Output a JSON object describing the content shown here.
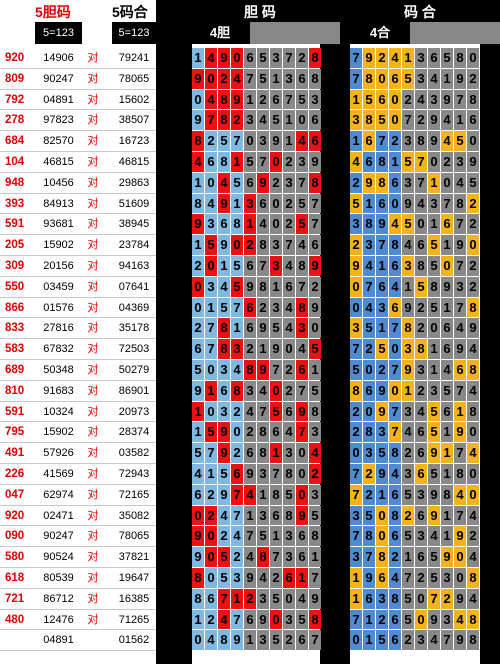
{
  "headers": {
    "col1_title": "5胆码",
    "col2_title": "5码合",
    "dan_title": "胆 码",
    "he_title": "码 合",
    "col1_sub": "5=123",
    "col2_sub": "5=123",
    "dan_sub": "4胆",
    "he_sub": "4合"
  },
  "colors": {
    "left_blue": "#7fb8e0",
    "red": "#ee1111",
    "gray": "#888888",
    "right_blue": "#4f8bd2",
    "yellow": "#f5b21a",
    "black": "#000000"
  },
  "rows": [
    {
      "label": "920",
      "a": "14906",
      "b": "对",
      "c": "79241",
      "d": "对",
      "dan": [
        "1",
        "4",
        "9",
        "0",
        "6",
        "5",
        "3",
        "7",
        "2",
        "8"
      ],
      "dan_red": [
        1,
        2,
        3,
        9
      ],
      "he": [
        "7",
        "9",
        "2",
        "4",
        "1",
        "3",
        "6",
        "5",
        "8",
        "0"
      ],
      "he_hl": [
        1,
        2,
        3,
        4
      ]
    },
    {
      "label": "809",
      "a": "90247",
      "b": "对",
      "c": "78065",
      "d": "对",
      "dan": [
        "9",
        "0",
        "2",
        "4",
        "7",
        "5",
        "1",
        "3",
        "6",
        "8"
      ],
      "dan_red": [
        0,
        1,
        2,
        3
      ],
      "he": [
        "7",
        "8",
        "0",
        "6",
        "5",
        "3",
        "4",
        "1",
        "9",
        "2"
      ],
      "he_hl": [
        1,
        2,
        3,
        4
      ]
    },
    {
      "label": "792",
      "a": "04891",
      "b": "对",
      "c": "15602",
      "d": "对",
      "dan": [
        "0",
        "4",
        "8",
        "9",
        "1",
        "2",
        "6",
        "7",
        "5",
        "3"
      ],
      "dan_red": [
        1,
        2,
        3
      ],
      "he": [
        "1",
        "5",
        "6",
        "0",
        "2",
        "4",
        "3",
        "9",
        "7",
        "8"
      ],
      "he_hl": [
        0,
        1,
        2,
        3
      ]
    },
    {
      "label": "278",
      "a": "97823",
      "b": "对",
      "c": "38507",
      "d": "对",
      "dan": [
        "9",
        "7",
        "8",
        "2",
        "3",
        "4",
        "5",
        "1",
        "0",
        "6"
      ],
      "dan_red": [
        1,
        2,
        3
      ],
      "he": [
        "3",
        "8",
        "5",
        "0",
        "7",
        "2",
        "9",
        "4",
        "1",
        "6"
      ],
      "he_hl": [
        0,
        1,
        2,
        3
      ]
    },
    {
      "label": "684",
      "a": "82570",
      "b": "对",
      "c": "16723",
      "d": "对",
      "dan": [
        "8",
        "2",
        "5",
        "7",
        "0",
        "3",
        "9",
        "1",
        "4",
        "6"
      ],
      "dan_red": [
        0,
        8,
        9
      ],
      "he": [
        "1",
        "6",
        "7",
        "2",
        "3",
        "8",
        "9",
        "4",
        "5",
        "0"
      ],
      "he_hl": [
        1,
        7,
        8
      ]
    },
    {
      "label": "104",
      "a": "46815",
      "b": "对",
      "c": "46815",
      "d": "对",
      "dan": [
        "4",
        "6",
        "8",
        "1",
        "5",
        "7",
        "0",
        "2",
        "3",
        "9"
      ],
      "dan_red": [
        0,
        3,
        6
      ],
      "he": [
        "4",
        "6",
        "8",
        "1",
        "5",
        "7",
        "0",
        "2",
        "3",
        "9"
      ],
      "he_hl": [
        0,
        4,
        5
      ]
    },
    {
      "label": "948",
      "a": "10456",
      "b": "对",
      "c": "29863",
      "d": "对",
      "dan": [
        "1",
        "0",
        "4",
        "5",
        "6",
        "9",
        "2",
        "3",
        "7",
        "8"
      ],
      "dan_red": [
        2,
        5,
        9
      ],
      "he": [
        "2",
        "9",
        "8",
        "6",
        "3",
        "7",
        "1",
        "0",
        "4",
        "5"
      ],
      "he_hl": [
        1,
        2,
        6
      ]
    },
    {
      "label": "393",
      "a": "84913",
      "b": "对",
      "c": "51609",
      "d": "对",
      "dan": [
        "8",
        "4",
        "9",
        "1",
        "3",
        "6",
        "0",
        "2",
        "5",
        "7"
      ],
      "dan_red": [
        2,
        4
      ],
      "he": [
        "5",
        "1",
        "6",
        "0",
        "9",
        "4",
        "3",
        "7",
        "8",
        "2"
      ],
      "he_hl": [
        0,
        9
      ]
    },
    {
      "label": "591",
      "a": "93681",
      "b": "对",
      "c": "38945",
      "d": "对",
      "dan": [
        "9",
        "3",
        "6",
        "8",
        "1",
        "4",
        "0",
        "2",
        "5",
        "7"
      ],
      "dan_red": [
        0,
        4,
        8
      ],
      "he": [
        "3",
        "8",
        "9",
        "4",
        "5",
        "0",
        "1",
        "6",
        "7",
        "2"
      ],
      "he_hl": [
        3,
        4,
        7
      ]
    },
    {
      "label": "205",
      "a": "15902",
      "b": "对",
      "c": "23784",
      "d": "对",
      "dan": [
        "1",
        "5",
        "9",
        "0",
        "2",
        "8",
        "3",
        "7",
        "4",
        "6"
      ],
      "dan_red": [
        3,
        4,
        1
      ],
      "he": [
        "2",
        "3",
        "7",
        "8",
        "4",
        "6",
        "5",
        "1",
        "9",
        "0"
      ],
      "he_hl": [
        0,
        6,
        9
      ]
    },
    {
      "label": "309",
      "a": "20156",
      "b": "对",
      "c": "94163",
      "d": "对",
      "dan": [
        "2",
        "0",
        "1",
        "5",
        "6",
        "7",
        "3",
        "4",
        "8",
        "9"
      ],
      "dan_red": [
        1,
        6,
        9
      ],
      "he": [
        "9",
        "4",
        "1",
        "6",
        "3",
        "8",
        "5",
        "0",
        "7",
        "2"
      ],
      "he_hl": [
        0,
        4,
        7
      ]
    },
    {
      "label": "550",
      "a": "03459",
      "b": "对",
      "c": "07641",
      "d": "对",
      "dan": [
        "0",
        "3",
        "4",
        "5",
        "9",
        "8",
        "1",
        "6",
        "7",
        "2"
      ],
      "dan_red": [
        0,
        3
      ],
      "he": [
        "0",
        "7",
        "6",
        "4",
        "1",
        "5",
        "8",
        "9",
        "3",
        "2"
      ],
      "he_hl": [
        0,
        5
      ]
    },
    {
      "label": "866",
      "a": "01576",
      "b": "对",
      "c": "04369",
      "d": "对",
      "dan": [
        "0",
        "1",
        "5",
        "7",
        "6",
        "2",
        "3",
        "4",
        "8",
        "9"
      ],
      "dan_red": [
        4,
        8
      ],
      "he": [
        "0",
        "4",
        "3",
        "6",
        "9",
        "2",
        "5",
        "1",
        "7",
        "8"
      ],
      "he_hl": [
        3,
        9
      ]
    },
    {
      "label": "833",
      "a": "27816",
      "b": "对",
      "c": "35178",
      "d": "对",
      "dan": [
        "2",
        "7",
        "8",
        "1",
        "6",
        "9",
        "5",
        "4",
        "3",
        "0"
      ],
      "dan_red": [
        2,
        8
      ],
      "he": [
        "3",
        "5",
        "1",
        "7",
        "8",
        "2",
        "0",
        "6",
        "4",
        "9"
      ],
      "he_hl": [
        0,
        4
      ]
    },
    {
      "label": "583",
      "a": "67832",
      "b": "对",
      "c": "72503",
      "d": "对",
      "dan": [
        "6",
        "7",
        "8",
        "3",
        "2",
        "1",
        "9",
        "0",
        "4",
        "5"
      ],
      "dan_red": [
        2,
        3,
        9
      ],
      "he": [
        "7",
        "2",
        "5",
        "0",
        "3",
        "8",
        "1",
        "6",
        "9",
        "4"
      ],
      "he_hl": [
        2,
        4,
        5
      ]
    },
    {
      "label": "689",
      "a": "50348",
      "b": "对",
      "c": "50279",
      "d": "对",
      "dan": [
        "5",
        "0",
        "3",
        "4",
        "8",
        "9",
        "7",
        "2",
        "6",
        "1"
      ],
      "dan_red": [
        4,
        5,
        8
      ],
      "he": [
        "5",
        "0",
        "2",
        "7",
        "9",
        "3",
        "1",
        "4",
        "6",
        "8"
      ],
      "he_hl": [
        4,
        8,
        9
      ]
    },
    {
      "label": "810",
      "a": "91683",
      "b": "对",
      "c": "86901",
      "d": "对",
      "dan": [
        "9",
        "1",
        "6",
        "8",
        "3",
        "4",
        "0",
        "2",
        "7",
        "5"
      ],
      "dan_red": [
        1,
        3,
        6
      ],
      "he": [
        "8",
        "6",
        "9",
        "0",
        "1",
        "2",
        "3",
        "5",
        "7",
        "4"
      ],
      "he_hl": [
        0,
        3,
        4
      ]
    },
    {
      "label": "591",
      "a": "10324",
      "b": "对",
      "c": "20973",
      "d": "对",
      "dan": [
        "1",
        "0",
        "3",
        "2",
        "4",
        "7",
        "5",
        "6",
        "9",
        "8"
      ],
      "dan_red": [
        0,
        6,
        8
      ],
      "he": [
        "2",
        "0",
        "9",
        "7",
        "3",
        "4",
        "5",
        "6",
        "1",
        "8"
      ],
      "he_hl": [
        2,
        6,
        8
      ]
    },
    {
      "label": "795",
      "a": "15902",
      "b": "对",
      "c": "28374",
      "d": "对",
      "dan": [
        "1",
        "5",
        "9",
        "0",
        "2",
        "8",
        "6",
        "4",
        "7",
        "3"
      ],
      "dan_red": [
        1,
        2,
        8
      ],
      "he": [
        "2",
        "8",
        "3",
        "7",
        "4",
        "6",
        "5",
        "1",
        "9",
        "0"
      ],
      "he_hl": [
        3,
        6,
        8
      ]
    },
    {
      "label": "491",
      "a": "57926",
      "b": "对",
      "c": "03582",
      "d": "对",
      "dan": [
        "5",
        "7",
        "9",
        "2",
        "6",
        "8",
        "1",
        "3",
        "0",
        "4"
      ],
      "dan_red": [
        2,
        6,
        9
      ],
      "he": [
        "0",
        "3",
        "5",
        "8",
        "2",
        "6",
        "9",
        "1",
        "7",
        "4"
      ],
      "he_hl": [
        6,
        7,
        9
      ]
    },
    {
      "label": "226",
      "a": "41569",
      "b": "对",
      "c": "72943",
      "d": "对",
      "dan": [
        "4",
        "1",
        "5",
        "6",
        "9",
        "3",
        "7",
        "8",
        "0",
        "2"
      ],
      "dan_red": [
        3,
        9
      ],
      "he": [
        "7",
        "2",
        "9",
        "4",
        "3",
        "6",
        "5",
        "1",
        "8",
        "0"
      ],
      "he_hl": [
        1,
        5
      ]
    },
    {
      "label": "047",
      "a": "62974",
      "b": "对",
      "c": "72165",
      "d": "对",
      "dan": [
        "6",
        "2",
        "9",
        "7",
        "4",
        "1",
        "8",
        "5",
        "0",
        "3"
      ],
      "dan_red": [
        3,
        4,
        8
      ],
      "he": [
        "7",
        "2",
        "1",
        "6",
        "5",
        "3",
        "9",
        "8",
        "4",
        "0"
      ],
      "he_hl": [
        0,
        8,
        9
      ]
    },
    {
      "label": "920",
      "a": "02471",
      "b": "对",
      "c": "35082",
      "d": "对",
      "dan": [
        "0",
        "2",
        "4",
        "7",
        "1",
        "3",
        "6",
        "8",
        "9",
        "5"
      ],
      "dan_red": [
        0,
        1,
        8
      ],
      "he": [
        "3",
        "5",
        "0",
        "8",
        "2",
        "6",
        "9",
        "1",
        "7",
        "4"
      ],
      "he_hl": [
        2,
        4,
        6
      ]
    },
    {
      "label": "090",
      "a": "90247",
      "b": "对",
      "c": "78065",
      "d": "对",
      "dan": [
        "9",
        "0",
        "2",
        "4",
        "7",
        "5",
        "1",
        "3",
        "6",
        "8"
      ],
      "dan_red": [
        0,
        1
      ],
      "he": [
        "7",
        "8",
        "0",
        "6",
        "5",
        "3",
        "4",
        "1",
        "9",
        "2"
      ],
      "he_hl": [
        2,
        8
      ]
    },
    {
      "label": "580",
      "a": "90524",
      "b": "对",
      "c": "37821",
      "d": "对",
      "dan": [
        "9",
        "0",
        "5",
        "2",
        "4",
        "8",
        "7",
        "3",
        "6",
        "1"
      ],
      "dan_red": [
        1,
        2,
        5
      ],
      "he": [
        "3",
        "7",
        "8",
        "2",
        "1",
        "6",
        "5",
        "9",
        "0",
        "4"
      ],
      "he_hl": [
        2,
        7,
        8
      ]
    },
    {
      "label": "618",
      "a": "80539",
      "b": "对",
      "c": "19647",
      "d": "对",
      "dan": [
        "8",
        "0",
        "5",
        "3",
        "9",
        "4",
        "2",
        "6",
        "1",
        "7"
      ],
      "dan_red": [
        0,
        7,
        8
      ],
      "he": [
        "1",
        "9",
        "6",
        "4",
        "7",
        "2",
        "5",
        "3",
        "0",
        "8"
      ],
      "he_hl": [
        0,
        2,
        9
      ]
    },
    {
      "label": "721",
      "a": "86712",
      "b": "对",
      "c": "16385",
      "d": "对",
      "dan": [
        "8",
        "6",
        "7",
        "1",
        "2",
        "3",
        "5",
        "0",
        "4",
        "9"
      ],
      "dan_red": [
        2,
        3,
        4
      ],
      "he": [
        "1",
        "6",
        "3",
        "8",
        "5",
        "0",
        "7",
        "2",
        "9",
        "4"
      ],
      "he_hl": [
        0,
        6,
        7
      ]
    },
    {
      "label": "480",
      "a": "12476",
      "b": "对",
      "c": "71265",
      "d": "对",
      "dan": [
        "1",
        "2",
        "4",
        "7",
        "6",
        "9",
        "0",
        "3",
        "5",
        "8"
      ],
      "dan_red": [
        2,
        6,
        9
      ],
      "he": [
        "7",
        "1",
        "2",
        "6",
        "5",
        "0",
        "9",
        "3",
        "4",
        "8"
      ],
      "he_hl": [
        5,
        8,
        9
      ]
    },
    {
      "label": "",
      "a": "04891",
      "b": "",
      "c": "01562",
      "d": "",
      "dan": [
        "0",
        "4",
        "8",
        "9",
        "1",
        "3",
        "5",
        "2",
        "6",
        "7"
      ],
      "dan_red": [],
      "he": [
        "0",
        "1",
        "5",
        "6",
        "2",
        "3",
        "4",
        "7",
        "9",
        "8"
      ],
      "he_hl": []
    }
  ]
}
